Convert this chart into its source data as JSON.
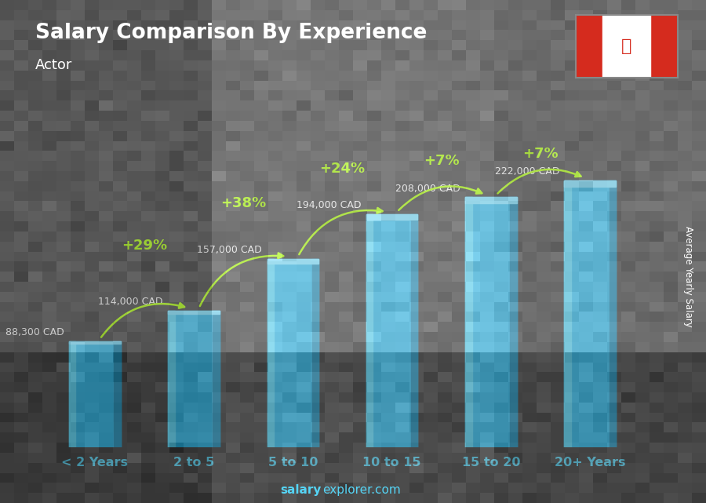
{
  "title": "Salary Comparison By Experience",
  "subtitle": "Actor",
  "ylabel": "Average Yearly Salary",
  "watermark_bold": "salary",
  "watermark_regular": "explorer.com",
  "categories": [
    "< 2 Years",
    "2 to 5",
    "5 to 10",
    "10 to 15",
    "15 to 20",
    "20+ Years"
  ],
  "values": [
    88300,
    114000,
    157000,
    194000,
    208000,
    222000
  ],
  "value_labels": [
    "88,300 CAD",
    "114,000 CAD",
    "157,000 CAD",
    "194,000 CAD",
    "208,000 CAD",
    "222,000 CAD"
  ],
  "pct_labels": [
    "+29%",
    "+38%",
    "+24%",
    "+7%",
    "+7%"
  ],
  "bar_color_main": "#29b6e8",
  "bar_color_light": "#55d4f5",
  "bar_color_dark": "#1a8ab5",
  "bar_color_top": "#7ae0ff",
  "bg_color": "#3d3d3d",
  "title_color": "#ffffff",
  "label_color": "#ffffff",
  "pct_color": "#aaff00",
  "arrow_color": "#aaff00",
  "tick_color": "#55d4f5",
  "watermark_color": "#55d4f5",
  "ylim": [
    0,
    280000
  ],
  "bar_width": 0.52,
  "figsize": [
    9.0,
    6.41
  ],
  "dpi": 100
}
